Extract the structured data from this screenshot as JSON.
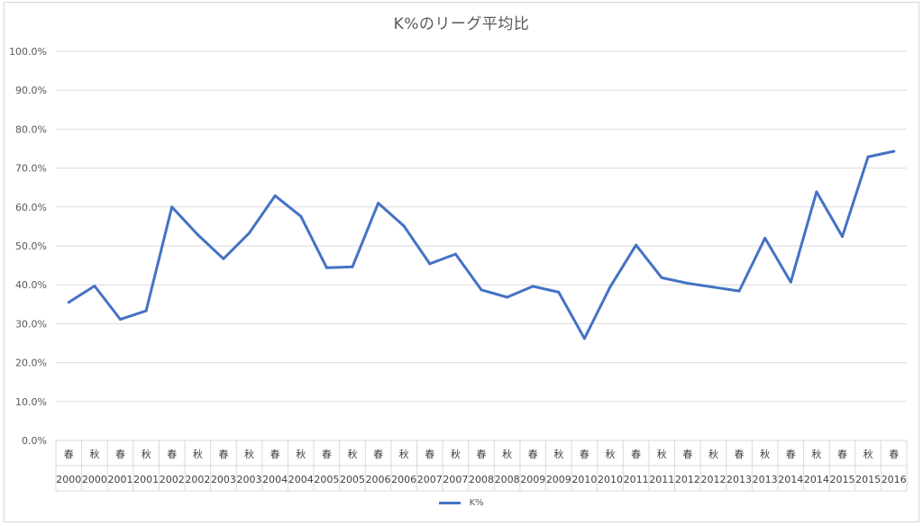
{
  "chart_data": {
    "type": "line",
    "title": "K%のリーグ平均比",
    "ylim": [
      0,
      100
    ],
    "y_ticks": [
      "0.0%",
      "10.0%",
      "20.0%",
      "30.0%",
      "40.0%",
      "50.0%",
      "60.0%",
      "70.0%",
      "80.0%",
      "90.0%",
      "100.0%"
    ],
    "grid": true,
    "legend_position": "bottom",
    "series_color": "#4472c4",
    "categories": [
      {
        "season": "春",
        "year": "2000"
      },
      {
        "season": "秋",
        "year": "2000"
      },
      {
        "season": "春",
        "year": "2001"
      },
      {
        "season": "秋",
        "year": "2001"
      },
      {
        "season": "春",
        "year": "2002"
      },
      {
        "season": "秋",
        "year": "2002"
      },
      {
        "season": "春",
        "year": "2003"
      },
      {
        "season": "秋",
        "year": "2003"
      },
      {
        "season": "春",
        "year": "2004"
      },
      {
        "season": "秋",
        "year": "2004"
      },
      {
        "season": "春",
        "year": "2005"
      },
      {
        "season": "秋",
        "year": "2005"
      },
      {
        "season": "春",
        "year": "2006"
      },
      {
        "season": "秋",
        "year": "2006"
      },
      {
        "season": "春",
        "year": "2007"
      },
      {
        "season": "秋",
        "year": "2007"
      },
      {
        "season": "春",
        "year": "2008"
      },
      {
        "season": "秋",
        "year": "2008"
      },
      {
        "season": "春",
        "year": "2009"
      },
      {
        "season": "秋",
        "year": "2009"
      },
      {
        "season": "春",
        "year": "2010"
      },
      {
        "season": "秋",
        "year": "2010"
      },
      {
        "season": "春",
        "year": "2011"
      },
      {
        "season": "秋",
        "year": "2011"
      },
      {
        "season": "春",
        "year": "2012"
      },
      {
        "season": "秋",
        "year": "2012"
      },
      {
        "season": "春",
        "year": "2013"
      },
      {
        "season": "秋",
        "year": "2013"
      },
      {
        "season": "春",
        "year": "2014"
      },
      {
        "season": "秋",
        "year": "2014"
      },
      {
        "season": "春",
        "year": "2015"
      },
      {
        "season": "秋",
        "year": "2015"
      },
      {
        "season": "春",
        "year": "2016"
      }
    ],
    "series": [
      {
        "name": "K%",
        "values": [
          35.5,
          39.7,
          31.1,
          33.3,
          60.0,
          52.9,
          46.7,
          53.3,
          62.9,
          57.6,
          44.4,
          44.6,
          61.0,
          55.1,
          45.4,
          47.9,
          38.7,
          36.8,
          39.6,
          38.1,
          26.2,
          39.5,
          50.2,
          41.8,
          40.4,
          39.4,
          38.4,
          52.0,
          40.7,
          63.9,
          52.4,
          72.9,
          74.3
        ]
      }
    ]
  }
}
